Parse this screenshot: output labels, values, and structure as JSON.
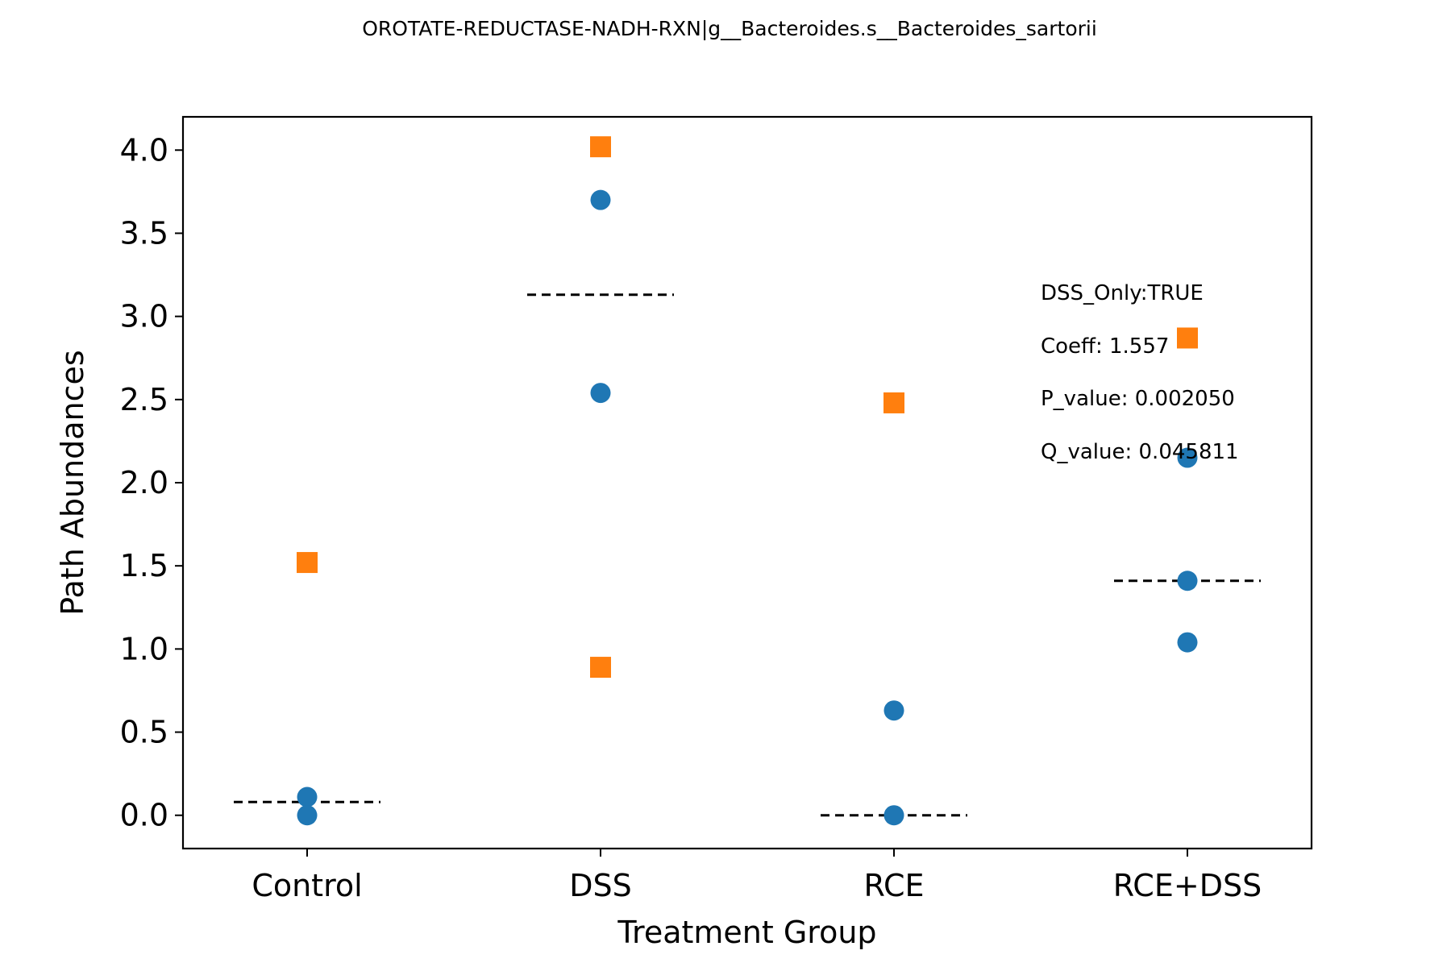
{
  "chart_data": {
    "type": "scatter",
    "title": "OROTATE-REDUCTASE-NADH-RXN|g__Bacteroides.s__Bacteroides_sartorii",
    "xlabel": "Treatment Group",
    "ylabel": "Path Abundances",
    "categories": [
      "Control",
      "DSS",
      "RCE",
      "RCE+DSS"
    ],
    "ylim": [
      -0.2,
      4.2
    ],
    "yticks": [
      "0.0",
      "0.5",
      "1.0",
      "1.5",
      "2.0",
      "2.5",
      "3.0",
      "3.5",
      "4.0"
    ],
    "grid": false,
    "series": [
      {
        "marker": "circle",
        "color": "#1f77b4",
        "points": [
          {
            "x": "Control",
            "y": 0.11
          },
          {
            "x": "Control",
            "y": 0.0
          },
          {
            "x": "DSS",
            "y": 3.7
          },
          {
            "x": "DSS",
            "y": 2.54
          },
          {
            "x": "RCE",
            "y": 0.63
          },
          {
            "x": "RCE",
            "y": 0.0
          },
          {
            "x": "RCE+DSS",
            "y": 2.15
          },
          {
            "x": "RCE+DSS",
            "y": 1.41
          },
          {
            "x": "RCE+DSS",
            "y": 1.04
          }
        ]
      },
      {
        "marker": "square",
        "color": "#ff7f0e",
        "points": [
          {
            "x": "Control",
            "y": 1.52
          },
          {
            "x": "DSS",
            "y": 4.02
          },
          {
            "x": "DSS",
            "y": 0.89
          },
          {
            "x": "RCE",
            "y": 2.48
          },
          {
            "x": "RCE+DSS",
            "y": 2.87
          }
        ]
      }
    ],
    "means": [
      {
        "x": "Control",
        "y": 0.08
      },
      {
        "x": "DSS",
        "y": 3.13
      },
      {
        "x": "RCE",
        "y": 0.0
      },
      {
        "x": "RCE+DSS",
        "y": 1.41
      }
    ],
    "annotations": {
      "dss_only": "DSS_Only:TRUE",
      "coeff": "Coeff: 1.557",
      "p_value": "P_value: 0.002050",
      "q_value": "Q_value: 0.045811"
    }
  }
}
